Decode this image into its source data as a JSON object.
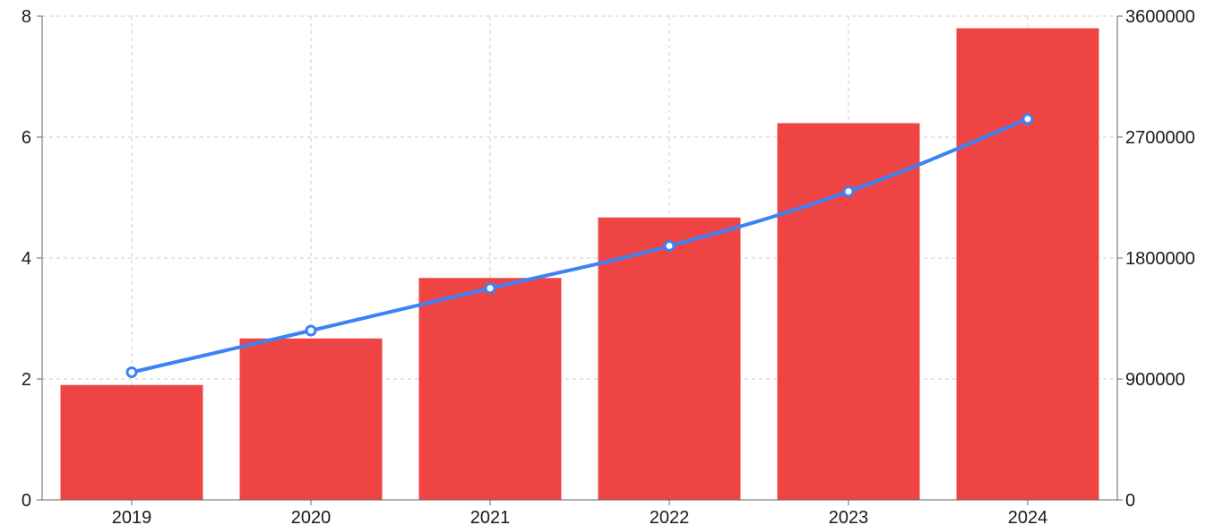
{
  "chart_data": {
    "type": "bar+line",
    "categories": [
      "2019",
      "2020",
      "2021",
      "2022",
      "2023",
      "2024"
    ],
    "series": [
      {
        "type": "bar",
        "axis": "left",
        "color": "#ef4444",
        "values": [
          1.9,
          2.67,
          3.67,
          4.67,
          6.23,
          7.8
        ]
      },
      {
        "type": "line",
        "axis": "right",
        "color": "#3b82f6",
        "values": [
          950000,
          1260000,
          1575000,
          1890000,
          2295000,
          2835000
        ]
      }
    ],
    "left_axis": {
      "ylim": [
        0,
        8
      ],
      "ticks": [
        "0",
        "2",
        "4",
        "6",
        "8"
      ]
    },
    "right_axis": {
      "ylim": [
        0,
        3600000
      ],
      "ticks": [
        "0",
        "900000",
        "1800000",
        "2700000",
        "3600000"
      ]
    },
    "grid": true,
    "legend": false
  }
}
